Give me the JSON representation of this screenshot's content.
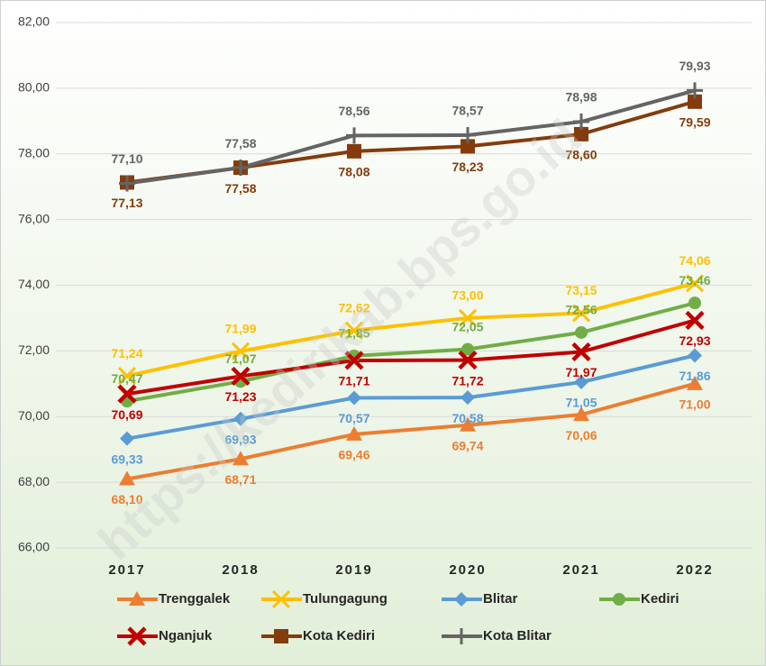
{
  "chart_data": {
    "type": "line",
    "watermark": "https://kedirikab.bps.go.id",
    "categories": [
      "2017",
      "2018",
      "2019",
      "2020",
      "2021",
      "2022"
    ],
    "ylim": [
      66,
      82
    ],
    "yticks": [
      {
        "value": 66,
        "label": "66,00"
      },
      {
        "value": 68,
        "label": "68,00"
      },
      {
        "value": 70,
        "label": "70,00"
      },
      {
        "value": 72,
        "label": "72,00"
      },
      {
        "value": 74,
        "label": "74,00"
      },
      {
        "value": 76,
        "label": "76,00"
      },
      {
        "value": 78,
        "label": "78,00"
      },
      {
        "value": 80,
        "label": "80,00"
      },
      {
        "value": 82,
        "label": "82,00"
      }
    ],
    "grid": true,
    "series": [
      {
        "name": "Trenggalek",
        "color": "#ED7D31",
        "values": [
          68.1,
          68.71,
          69.46,
          69.74,
          70.06,
          71.0
        ],
        "value_labels": [
          "68,10",
          "68,71",
          "69,46",
          "69,74",
          "70,06",
          "71,00"
        ]
      },
      {
        "name": "Tulungagung",
        "color": "#FFC000",
        "values": [
          71.24,
          71.99,
          72.62,
          73.0,
          73.15,
          74.06
        ],
        "value_labels": [
          "71,24",
          "71,99",
          "72,62",
          "73,00",
          "73,15",
          "74,06"
        ]
      },
      {
        "name": "Blitar",
        "color": "#5B9BD5",
        "values": [
          69.33,
          69.93,
          70.57,
          70.58,
          71.05,
          71.86
        ],
        "value_labels": [
          "69,33",
          "69,93",
          "70,57",
          "70,58",
          "71,05",
          "71,86"
        ]
      },
      {
        "name": "Kediri",
        "color": "#70AD47",
        "values": [
          70.47,
          71.07,
          71.85,
          72.05,
          72.56,
          73.46
        ],
        "value_labels": [
          "70,47",
          "71,07",
          "71,85",
          "72,05",
          "72,56",
          "73,46"
        ]
      },
      {
        "name": "Nganjuk",
        "color": "#C00000",
        "values": [
          70.69,
          71.23,
          71.71,
          71.72,
          71.97,
          72.93
        ],
        "value_labels": [
          "70,69",
          "71,23",
          "71,71",
          "71,72",
          "71,97",
          "72,93"
        ]
      },
      {
        "name": "Kota Kediri",
        "color": "#843C0C",
        "values": [
          77.13,
          77.58,
          78.08,
          78.23,
          78.6,
          79.59
        ],
        "value_labels": [
          "77,13",
          "77,58",
          "78,08",
          "78,23",
          "78,60",
          "79,59"
        ]
      },
      {
        "name": "Kota Blitar",
        "color": "#646464",
        "values": [
          77.1,
          77.58,
          78.56,
          78.57,
          78.98,
          79.93
        ],
        "value_labels": [
          "77,10",
          "77,58",
          "78,56",
          "78,57",
          "78,98",
          "79,93"
        ]
      }
    ]
  }
}
